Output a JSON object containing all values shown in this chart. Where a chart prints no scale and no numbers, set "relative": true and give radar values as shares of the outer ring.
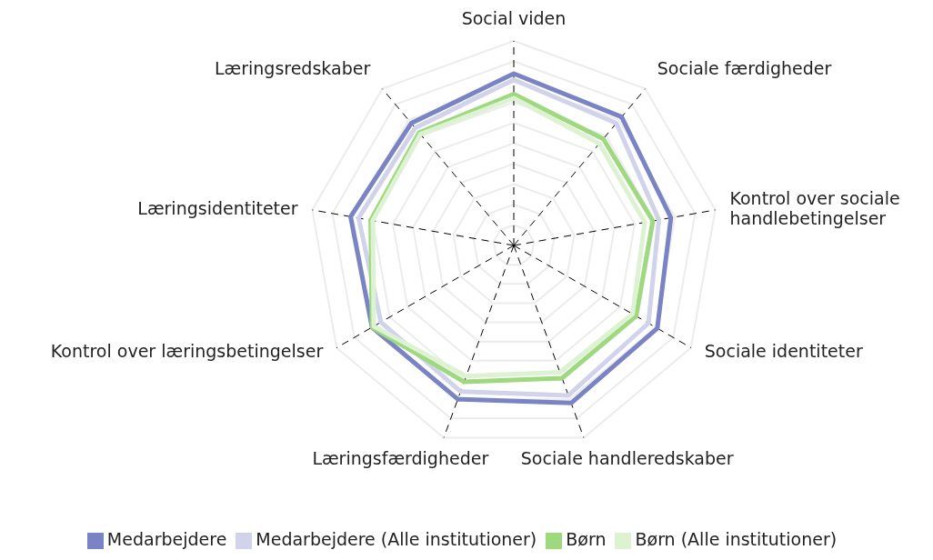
{
  "chart_data": {
    "type": "radar",
    "relative": true,
    "grid": true,
    "legend": "bottom",
    "marker": "none",
    "categories": [
      "Social viden",
      "Sociale færdigheder",
      "Kontrol over sociale handlebetingelser",
      "Sociale identiteter",
      "Sociale handleredskaber",
      "Læringsfærdigheder",
      "Kontrol over læringsbetingelser",
      "Læringsidentiteter",
      "Læringsredskaber"
    ],
    "series": [
      {
        "name": "Medarbejdere",
        "color": "#7a84c4",
        "values": [
          0.84,
          0.82,
          0.78,
          0.81,
          0.82,
          0.8,
          0.8,
          0.81,
          0.78
        ]
      },
      {
        "name": "Medarbejdere (Alle institutioner)",
        "color": "#d0d3ea",
        "values": [
          0.81,
          0.78,
          0.72,
          0.76,
          0.78,
          0.76,
          0.75,
          0.77,
          0.75
        ]
      },
      {
        "name": "Børn",
        "color": "#9ed97f",
        "values": [
          0.74,
          0.68,
          0.69,
          0.69,
          0.69,
          0.71,
          0.8,
          0.71,
          0.72
        ]
      },
      {
        "name": "Børn (Alle institutioner)",
        "color": "#dcf2d2",
        "values": [
          0.72,
          0.65,
          0.65,
          0.67,
          0.66,
          0.68,
          0.79,
          0.7,
          0.71
        ]
      }
    ]
  }
}
